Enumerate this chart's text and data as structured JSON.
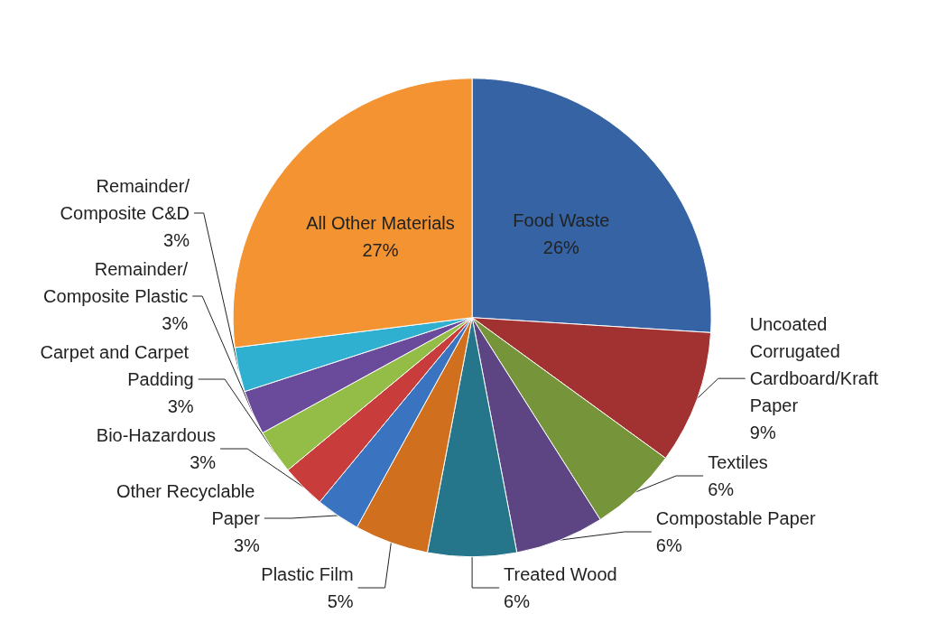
{
  "chart_data": {
    "type": "pie",
    "categories": [
      "Food Waste",
      "Uncoated Corrugated Cardboard/Kraft Paper",
      "Textiles",
      "Compostable Paper",
      "Treated Wood",
      "Plastic Film",
      "Other Recyclable Paper",
      "Bio-Hazardous",
      "Carpet and Carpet Padding",
      "Remainder/Composite Plastic",
      "Remainder/Composite C&D",
      "All Other Materials"
    ],
    "values": [
      26,
      9,
      6,
      6,
      6,
      5,
      3,
      3,
      3,
      3,
      3,
      27
    ],
    "value_labels": [
      "26%",
      "9%",
      "6%",
      "6%",
      "6%",
      "5%",
      "3%",
      "3%",
      "3%",
      "3%",
      "3%",
      "27%"
    ],
    "colors": [
      "#3563a3",
      "#a23131",
      "#76943a",
      "#5d4583",
      "#25768a",
      "#d0701e",
      "#3a74c0",
      "#c83c3c",
      "#94bd48",
      "#6a4a9a",
      "#2fb0d0",
      "#f39332"
    ]
  }
}
